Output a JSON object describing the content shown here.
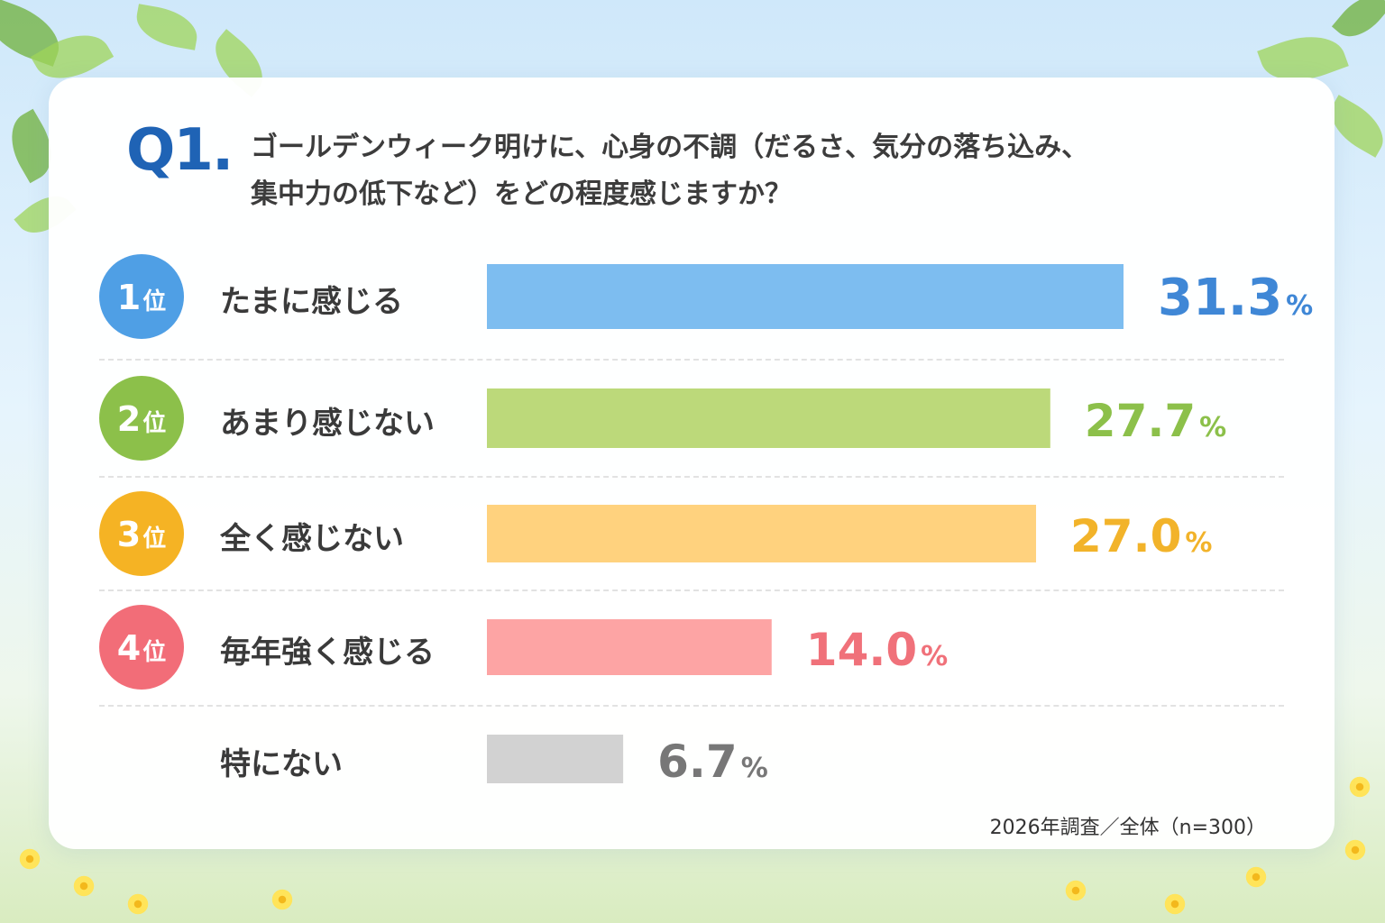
{
  "question": {
    "number": "Q1.",
    "line1": "ゴールデンウィーク明けに、心身の不調（だるさ、気分の落ち込み、",
    "line2": "集中力の低下など）をどの程度感じますか？"
  },
  "rank_suffix": "位",
  "footnote": "2026年調査／全体（n=300）",
  "chart_data": {
    "type": "bar",
    "orientation": "horizontal",
    "categories": [
      "たまに感じる",
      "あまり感じない",
      "全く感じない",
      "毎年強く感じる",
      "特にない"
    ],
    "values": [
      31.3,
      27.7,
      27.0,
      14.0,
      6.7
    ],
    "ranks": [
      "1",
      "2",
      "3",
      "4",
      ""
    ],
    "unit": "%",
    "colors": [
      "#7dbdf0",
      "#bcd97a",
      "#ffd27e",
      "#fda4a4",
      "#d2d2d2"
    ],
    "label_colors": [
      "#3f87d6",
      "#8cc04a",
      "#f2b32a",
      "#f0717a",
      "#777777"
    ],
    "rank_colors": [
      "#4f9fe5",
      "#8cc04a",
      "#f5b324",
      "#f26d78",
      ""
    ],
    "xlim": [
      0,
      31.3
    ],
    "title": "",
    "xlabel": "",
    "ylabel": ""
  }
}
